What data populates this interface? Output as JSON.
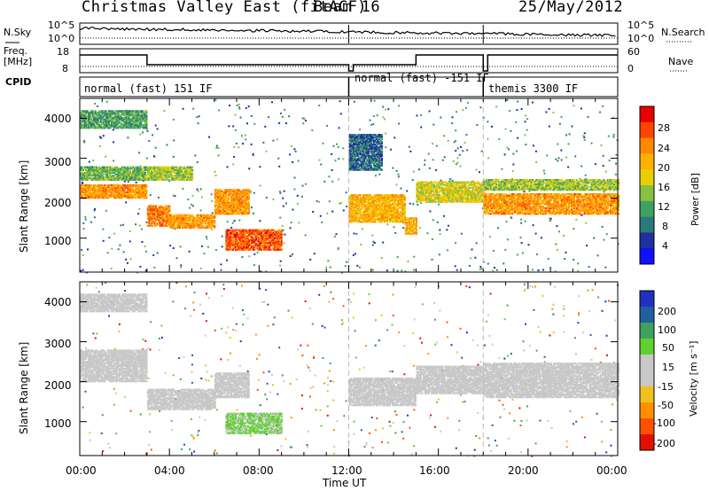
{
  "header": {
    "title": "Christmas Valley East (fitACF)",
    "beam": "Beam 16",
    "date": "25/May/2012"
  },
  "summary_labels": {
    "nsky": "N.Sky",
    "nsearch": "N.Search",
    "freq_line1": "Freq.",
    "freq_line2": "[MHz]",
    "nave": "Nave",
    "cpid": "CPID",
    "nsky_ticks": [
      "10^5",
      "10^0"
    ],
    "nsearch_ticks": [
      "10^5",
      "10^0"
    ],
    "freq_ticks": [
      "18",
      "8"
    ],
    "nave_ticks": [
      "60",
      "0"
    ]
  },
  "cpid_segments": [
    {
      "label": "normal (fast) 151 IF",
      "start_hour": 0,
      "end_hour": 12
    },
    {
      "label": "normal (fast) -151 IF",
      "start_hour": 12,
      "end_hour": 18
    },
    {
      "label": "themis 3300 IF",
      "start_hour": 18,
      "end_hour": 24
    }
  ],
  "power_panel": {
    "ylabel": "Slant Range [km]",
    "yticks": [
      "4000",
      "3000",
      "2000",
      "1000"
    ],
    "colorbar_label": "Power [dB]",
    "colorbar_ticks": [
      "28",
      "24",
      "20",
      "16",
      "12",
      "8",
      "4"
    ],
    "colors": [
      "#e60000",
      "#ff4400",
      "#ff8800",
      "#ffb000",
      "#e8d000",
      "#88c040",
      "#40a060",
      "#2a7a7a",
      "#2030a0",
      "#1010ff"
    ]
  },
  "velocity_panel": {
    "ylabel": "Slant Range [km]",
    "yticks": [
      "4000",
      "3000",
      "2000",
      "1000"
    ],
    "colorbar_label": "Velocity [m s⁻¹]",
    "colorbar_ticks": [
      "200",
      "100",
      "50",
      "15",
      "-15",
      "-50",
      "-100",
      "-200"
    ],
    "colors": [
      "#2030c0",
      "#2060a0",
      "#40a060",
      "#60d030",
      "#c8c8c8",
      "#c8c8c8",
      "#f0c020",
      "#ff9000",
      "#ff5000",
      "#e01000"
    ]
  },
  "xaxis": {
    "label": "Time UT",
    "ticks": [
      "00:00",
      "04:00",
      "08:00",
      "12:00",
      "16:00",
      "20:00",
      "00:00"
    ]
  },
  "chart_data": [
    {
      "type": "heatmap",
      "title": "Power",
      "xlabel": "Time UT",
      "ylabel": "Slant Range [km]",
      "xlim_hours": [
        0,
        24
      ],
      "ylim": [
        150,
        4500
      ],
      "clim": [
        0,
        30
      ],
      "units": "dB",
      "echo_bands": [
        {
          "start_hour": 0.0,
          "end_hour": 3.0,
          "range_km": [
            2000,
            2350
          ],
          "power_db": 22
        },
        {
          "start_hour": 0.0,
          "end_hour": 3.0,
          "range_km": [
            2450,
            2800
          ],
          "power_db": 12
        },
        {
          "start_hour": 0.0,
          "end_hour": 3.0,
          "range_km": [
            3750,
            4200
          ],
          "power_db": 10
        },
        {
          "start_hour": 3.0,
          "end_hour": 4.0,
          "range_km": [
            1300,
            1800
          ],
          "power_db": 24
        },
        {
          "start_hour": 3.0,
          "end_hour": 5.0,
          "range_km": [
            2450,
            2800
          ],
          "power_db": 14
        },
        {
          "start_hour": 4.0,
          "end_hour": 6.0,
          "range_km": [
            1250,
            1600
          ],
          "power_db": 22
        },
        {
          "start_hour": 6.0,
          "end_hour": 7.5,
          "range_km": [
            1600,
            2200
          ],
          "power_db": 22
        },
        {
          "start_hour": 6.5,
          "end_hour": 9.0,
          "range_km": [
            700,
            1200
          ],
          "power_db": 26
        },
        {
          "start_hour": 12.0,
          "end_hour": 14.5,
          "range_km": [
            1400,
            2100
          ],
          "power_db": 20
        },
        {
          "start_hour": 12.0,
          "end_hour": 13.5,
          "range_km": [
            2700,
            3600
          ],
          "power_db": 6
        },
        {
          "start_hour": 14.5,
          "end_hour": 15.0,
          "range_km": [
            1100,
            1500
          ],
          "power_db": 20
        },
        {
          "start_hour": 15.0,
          "end_hour": 18.0,
          "range_km": [
            1900,
            2400
          ],
          "power_db": 16
        },
        {
          "start_hour": 18.0,
          "end_hour": 24.0,
          "range_km": [
            1600,
            2100
          ],
          "power_db": 22
        },
        {
          "start_hour": 18.0,
          "end_hour": 24.0,
          "range_km": [
            2200,
            2450
          ],
          "power_db": 14
        }
      ]
    },
    {
      "type": "heatmap",
      "title": "Velocity",
      "xlabel": "Time UT",
      "ylabel": "Slant Range [km]",
      "xlim_hours": [
        0,
        24
      ],
      "ylim": [
        150,
        4500
      ],
      "clim": [
        -250,
        250
      ],
      "units": "m s^-1",
      "echo_bands": [
        {
          "start_hour": 0.0,
          "end_hour": 3.0,
          "range_km": [
            2000,
            2800
          ],
          "velocity": 0
        },
        {
          "start_hour": 0.0,
          "end_hour": 3.0,
          "range_km": [
            3750,
            4200
          ],
          "velocity": 0
        },
        {
          "start_hour": 3.0,
          "end_hour": 6.0,
          "range_km": [
            1300,
            1800
          ],
          "velocity": 0
        },
        {
          "start_hour": 6.0,
          "end_hour": 7.5,
          "range_km": [
            1600,
            2200
          ],
          "velocity": -20
        },
        {
          "start_hour": 6.5,
          "end_hour": 9.0,
          "range_km": [
            700,
            1200
          ],
          "velocity": 60
        },
        {
          "start_hour": 12.0,
          "end_hour": 15.0,
          "range_km": [
            1400,
            2100
          ],
          "velocity": 0
        },
        {
          "start_hour": 15.0,
          "end_hour": 18.0,
          "range_km": [
            1700,
            2400
          ],
          "velocity": 0
        },
        {
          "start_hour": 18.0,
          "end_hour": 24.0,
          "range_km": [
            1600,
            2450
          ],
          "velocity": 0
        }
      ]
    }
  ]
}
